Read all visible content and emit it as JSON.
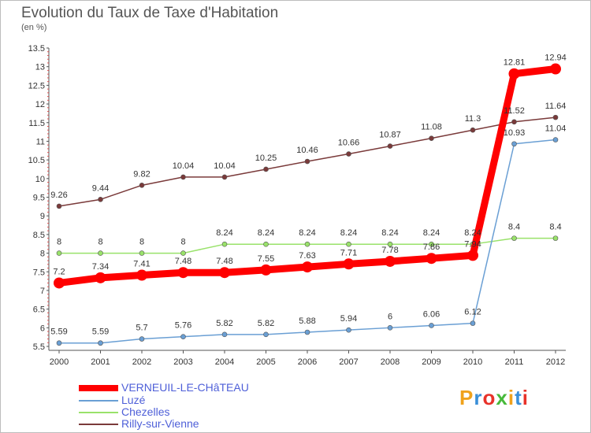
{
  "header": {
    "title": "Evolution du Taux de Taxe d'Habitation",
    "unit": "(en %)"
  },
  "chart_data": {
    "type": "line",
    "x": [
      "2000",
      "2001",
      "2002",
      "2003",
      "2004",
      "2005",
      "2006",
      "2007",
      "2008",
      "2009",
      "2010",
      "2011",
      "2012"
    ],
    "ylim": [
      5.5,
      13.5
    ],
    "yticks": [
      "5.5",
      "6",
      "6.5",
      "7",
      "7.5",
      "8",
      "8.5",
      "9",
      "9.5",
      "10",
      "10.5",
      "11",
      "11.5",
      "12",
      "12.5",
      "13",
      "13.5"
    ],
    "grid": false,
    "legend": "bottom-left",
    "series": [
      {
        "name": "VERNEUIL-LE-CHâTEAU",
        "color": "#ff0000",
        "values": [
          7.2,
          7.34,
          7.41,
          7.48,
          7.48,
          7.55,
          7.63,
          7.71,
          7.78,
          7.86,
          7.94,
          12.81,
          12.94
        ],
        "labels": [
          "7.2",
          "7.34",
          "7.41",
          "7.48",
          "7.48",
          "7.55",
          "7.63",
          "7.71",
          "7.78",
          "7.86",
          "7.94",
          "12.81",
          "12.94"
        ]
      },
      {
        "name": "Luzé",
        "color": "#6a9fd4",
        "values": [
          5.59,
          5.59,
          5.7,
          5.76,
          5.82,
          5.82,
          5.88,
          5.94,
          6,
          6.06,
          6.12,
          10.93,
          11.04
        ],
        "labels": [
          "5.59",
          "5.59",
          "5.7",
          "5.76",
          "5.82",
          "5.82",
          "5.88",
          "5.94",
          "6",
          "6.06",
          "6.12",
          "10.93",
          "11.04"
        ]
      },
      {
        "name": "Chezelles",
        "color": "#99e26a",
        "values": [
          8,
          8,
          8,
          8,
          8.24,
          8.24,
          8.24,
          8.24,
          8.24,
          8.24,
          8.24,
          8.4,
          8.4
        ],
        "labels": [
          "8",
          "8",
          "8",
          "8",
          "8.24",
          "8.24",
          "8.24",
          "8.24",
          "8.24",
          "8.24",
          "8.24",
          "8.4",
          "8.4"
        ]
      },
      {
        "name": "Rilly-sur-Vienne",
        "color": "#7a3a3a",
        "values": [
          9.26,
          9.44,
          9.82,
          10.04,
          10.04,
          10.25,
          10.46,
          10.66,
          10.87,
          11.08,
          11.3,
          11.52,
          11.64
        ],
        "labels": [
          "9.26",
          "9.44",
          "9.82",
          "10.04",
          "10.04",
          "10.25",
          "10.46",
          "10.66",
          "10.87",
          "11.08",
          "11.3",
          "11.52",
          "11.64"
        ]
      }
    ]
  },
  "logo": {
    "text": "Proxiti",
    "colors": [
      "#f0a21c",
      "#3a8fd8",
      "#e8322a",
      "#47b93a",
      "#f0a21c",
      "#3a8fd8",
      "#e8322a"
    ]
  }
}
